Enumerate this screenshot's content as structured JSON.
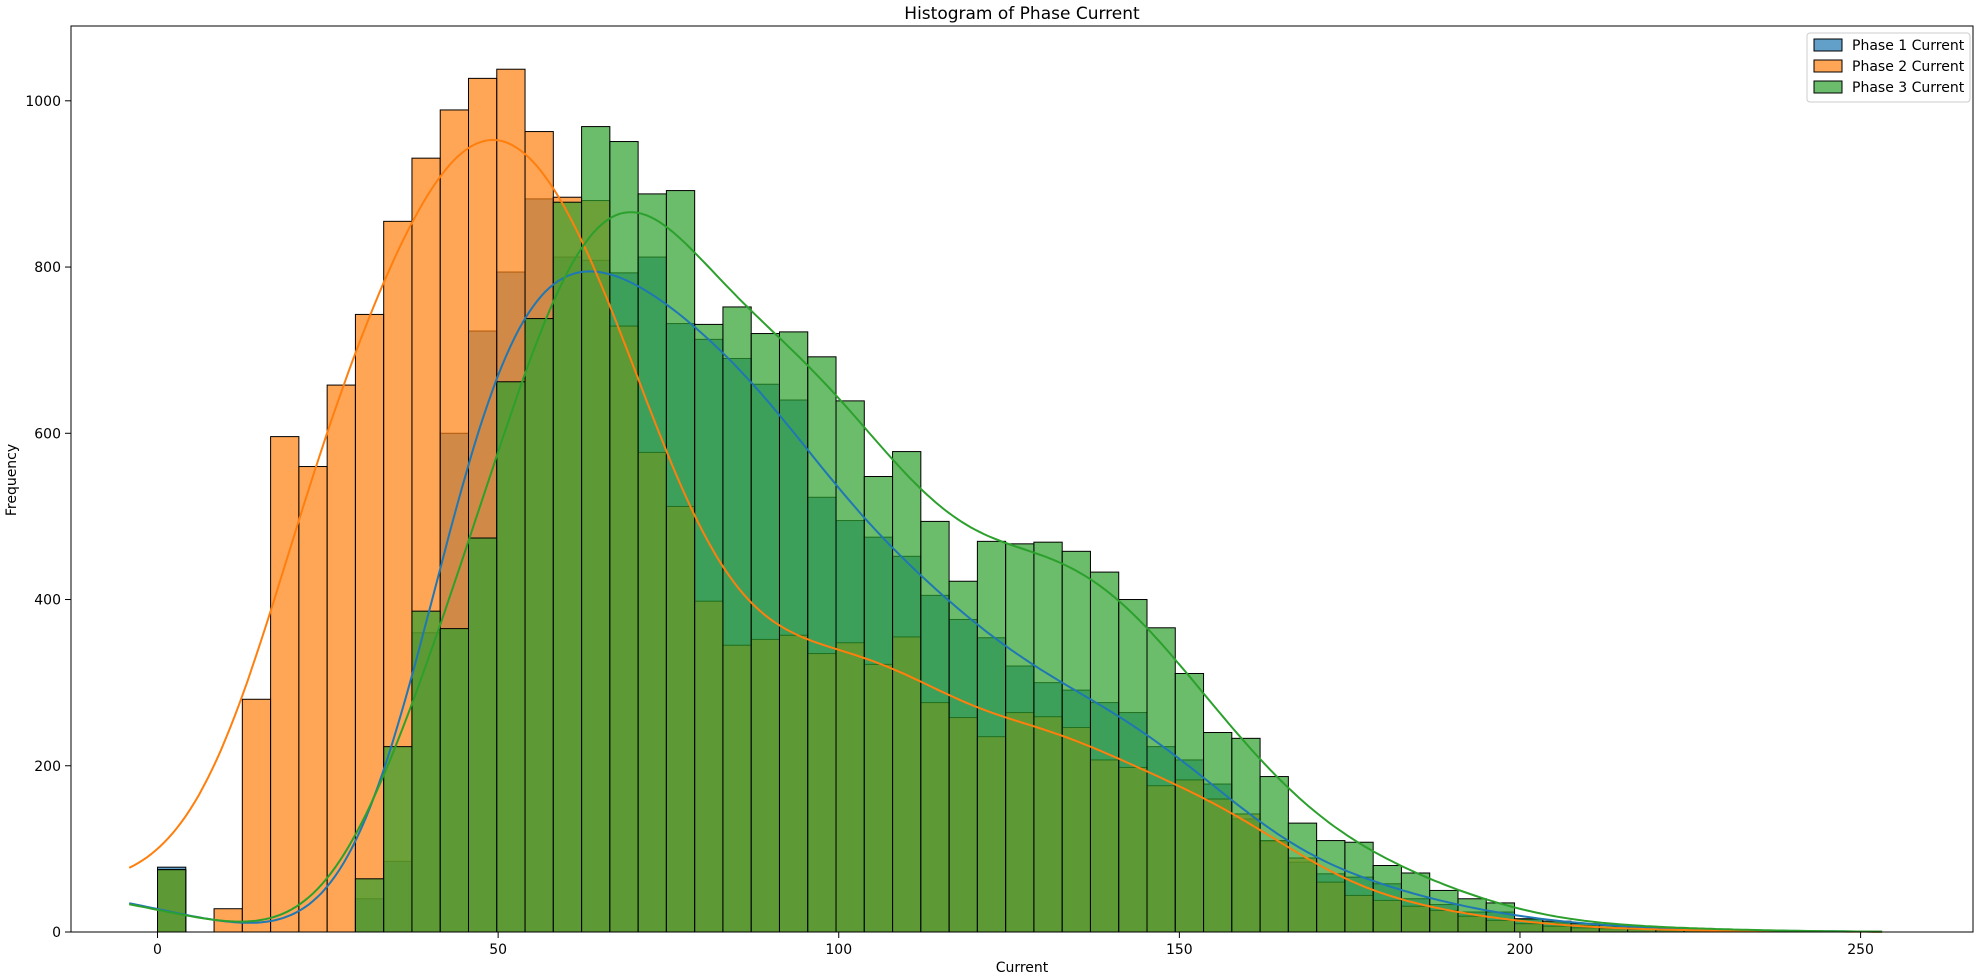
{
  "chart_data": {
    "type": "bar",
    "title": "Histogram of Phase Current",
    "xlabel": "Current",
    "ylabel": "Frequency",
    "xlim": [
      -12.7,
      266.5
    ],
    "ylim": [
      0,
      1090
    ],
    "xticks": [
      0,
      50,
      100,
      150,
      200,
      250
    ],
    "yticks": [
      0,
      200,
      400,
      600,
      800,
      1000
    ],
    "legend_position": "top-right",
    "series": [
      {
        "name": "Phase 1 Current",
        "color": "#1f77b4",
        "bin_width": 4.15,
        "x_start": 0,
        "values": [
          78,
          0,
          0,
          0,
          0,
          0,
          0,
          40,
          85,
          360,
          600,
          723,
          794,
          882,
          812,
          808,
          793,
          812,
          732,
          713,
          690,
          659,
          640,
          523,
          495,
          475,
          452,
          405,
          376,
          354,
          320,
          300,
          291,
          276,
          264,
          223,
          207,
          178,
          136,
          109,
          84,
          70,
          66,
          58,
          40,
          33,
          24,
          24,
          15,
          11,
          8,
          6,
          5,
          4,
          3,
          2,
          2,
          1,
          1,
          0,
          0
        ]
      },
      {
        "name": "Phase 2 Current",
        "color": "#ff7f0e",
        "bin_width": 4.15,
        "x_start": 0,
        "values": [
          75,
          0,
          28,
          280,
          596,
          560,
          658,
          743,
          855,
          931,
          989,
          1027,
          1038,
          963,
          884,
          880,
          729,
          577,
          512,
          398,
          345,
          352,
          357,
          335,
          348,
          322,
          355,
          276,
          258,
          235,
          264,
          259,
          246,
          207,
          198,
          176,
          183,
          160,
          142,
          110,
          89,
          60,
          44,
          38,
          31,
          26,
          19,
          14,
          10,
          7,
          5,
          4,
          3,
          2,
          2,
          1,
          1,
          1,
          1,
          0,
          0
        ]
      },
      {
        "name": "Phase 3 Current",
        "color": "#2ca02c",
        "bin_width": 4.15,
        "x_start": 0,
        "values": [
          75,
          0,
          0,
          0,
          0,
          0,
          0,
          64,
          223,
          386,
          365,
          474,
          662,
          738,
          878,
          969,
          951,
          888,
          892,
          731,
          752,
          720,
          722,
          692,
          639,
          548,
          578,
          494,
          422,
          470,
          467,
          469,
          458,
          433,
          400,
          366,
          311,
          240,
          233,
          187,
          131,
          110,
          108,
          80,
          71,
          50,
          40,
          35,
          16,
          13,
          10,
          8,
          6,
          5,
          4,
          3,
          2,
          1,
          1,
          0,
          0
        ]
      }
    ]
  }
}
